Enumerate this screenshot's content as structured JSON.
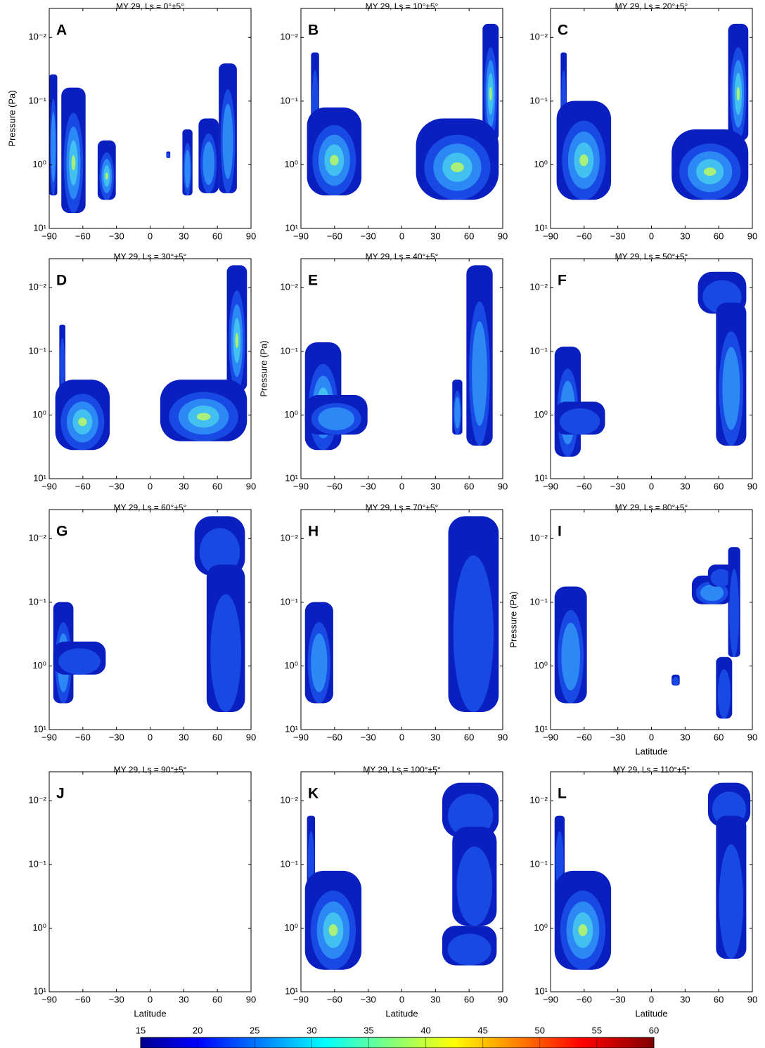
{
  "chart_data": {
    "type": "contour_grid",
    "xlim": [
      -90,
      90
    ],
    "xticks": [
      {
        "value": -90,
        "label": "−90"
      },
      {
        "value": -60,
        "label": "−60"
      },
      {
        "value": -30,
        "label": "−30"
      },
      0,
      30,
      60,
      90
    ],
    "ylim": [
      0.0035,
      10
    ],
    "yscale": "log",
    "y_inverted": true,
    "yticks": [
      {
        "value": 0.01,
        "label": "10⁻²"
      },
      {
        "value": 0.1,
        "label": "10⁻¹"
      },
      {
        "value": 1,
        "label": "10⁰"
      },
      {
        "value": 10,
        "label": "10¹"
      }
    ],
    "xlabel": "Latitude",
    "ylabel": "Pressure (Pa)",
    "panels": [
      {
        "label": "A",
        "title": "MY 29, Ls = 0°±5°",
        "show_ylabel": true
      },
      {
        "label": "B",
        "title": "MY 29, Ls = 10°±5°"
      },
      {
        "label": "C",
        "title": "MY 29, Ls = 20°±5°"
      },
      {
        "label": "D",
        "title": "MY 29, Ls = 30°±5°"
      },
      {
        "label": "E",
        "title": "MY 29, Ls = 40°±5°",
        "show_ylabel": true
      },
      {
        "label": "F",
        "title": "MY 29, Ls = 50°±5°"
      },
      {
        "label": "G",
        "title": "MY 29, Ls = 60°±5°"
      },
      {
        "label": "H",
        "title": "MY 29, Ls = 70°±5°"
      },
      {
        "label": "I",
        "title": "MY 29, Ls = 80°±5°",
        "show_ylabel": true,
        "show_xlabel": true
      },
      {
        "label": "J",
        "title": "MY 29, Ls = 90°±5°",
        "show_xlabel": true
      },
      {
        "label": "K",
        "title": "MY 29, Ls = 100°±5°",
        "show_xlabel": true
      },
      {
        "label": "L",
        "title": "MY 29, Ls = 110°±5°",
        "show_xlabel": true
      }
    ],
    "colorbar": {
      "colormap": "jet",
      "lim": [
        15,
        60
      ],
      "ticks": [
        15,
        20,
        25,
        30,
        35,
        40,
        45,
        50,
        55,
        60
      ]
    }
  }
}
